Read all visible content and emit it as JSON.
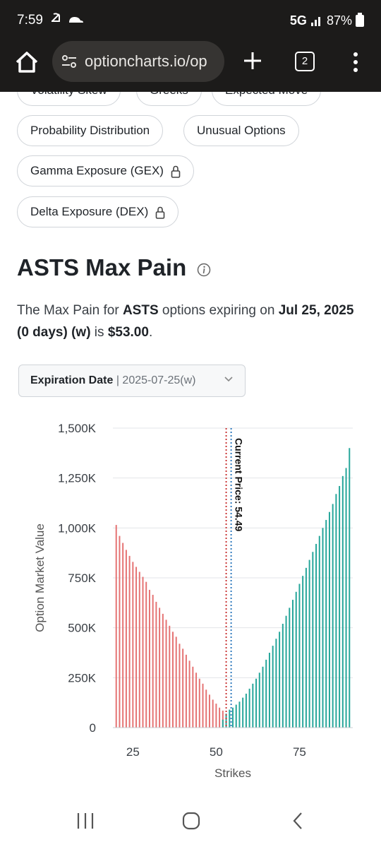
{
  "status_bar": {
    "time": "7:59",
    "network": "5G",
    "battery": "87%"
  },
  "browser": {
    "url": "optioncharts.io/op",
    "tab_count": "2"
  },
  "chips": [
    {
      "label": "Volatility Skew"
    },
    {
      "label": "Greeks"
    },
    {
      "label": "Expected Move"
    },
    {
      "label": "Probability Distribution"
    },
    {
      "label": "Unusual Options"
    },
    {
      "label": "Gamma Exposure (GEX)",
      "locked": true
    },
    {
      "label": "Delta Exposure (DEX)",
      "locked": true
    }
  ],
  "page": {
    "title": "ASTS Max Pain",
    "desc_pre": "The Max Pain for ",
    "desc_ticker": "ASTS",
    "desc_mid": " options expiring on ",
    "desc_date": "Jul 25, 2025 (0 days) (w)",
    "desc_is": " is ",
    "desc_value": "$53.00",
    "desc_end": "."
  },
  "expiration": {
    "label": "Expiration Date",
    "value": "2025-07-25(w)"
  },
  "chart_data": {
    "type": "bar",
    "ylabel": "Option Market Value",
    "xlabel": "Strikes",
    "ylim": [
      0,
      1500000
    ],
    "yticks": [
      "0",
      "250K",
      "500K",
      "750K",
      "1,000K",
      "1,250K",
      "1,500K"
    ],
    "xticks": [
      "25",
      "50",
      "75"
    ],
    "xlim": [
      19,
      91
    ],
    "max_pain_strike": 53,
    "current_price": 54.49,
    "current_price_label": "Current Price: 54.49",
    "colors": {
      "put": "#e57373",
      "call": "#26a69a",
      "max_pain_line": "#c62828",
      "current_line": "#1e6fb8"
    },
    "series": [
      {
        "name": "put",
        "x": [
          20,
          21,
          22,
          23,
          24,
          25,
          26,
          27,
          28,
          29,
          30,
          31,
          32,
          33,
          34,
          35,
          36,
          37,
          38,
          39,
          40,
          41,
          42,
          43,
          44,
          45,
          46,
          47,
          48,
          49,
          50,
          51,
          52
        ],
        "values": [
          1015000,
          960000,
          925000,
          890000,
          860000,
          830000,
          805000,
          780000,
          755000,
          730000,
          690000,
          665000,
          630000,
          600000,
          570000,
          540000,
          510000,
          480000,
          455000,
          420000,
          395000,
          365000,
          335000,
          305000,
          275000,
          245000,
          220000,
          190000,
          165000,
          140000,
          120000,
          100000,
          85000
        ]
      },
      {
        "name": "call",
        "x": [
          52,
          53,
          54,
          55,
          56,
          57,
          58,
          59,
          60,
          61,
          62,
          63,
          64,
          65,
          66,
          67,
          68,
          69,
          70,
          71,
          72,
          73,
          74,
          75,
          76,
          77,
          78,
          79,
          80,
          81,
          82,
          83,
          84,
          85,
          86,
          87,
          88,
          89,
          90
        ],
        "values": [
          40000,
          70000,
          90000,
          100000,
          115000,
          130000,
          150000,
          170000,
          195000,
          220000,
          245000,
          275000,
          305000,
          340000,
          375000,
          410000,
          445000,
          480000,
          520000,
          560000,
          600000,
          640000,
          680000,
          720000,
          760000,
          800000,
          840000,
          880000,
          920000,
          960000,
          1000000,
          1040000,
          1080000,
          1120000,
          1170000,
          1210000,
          1260000,
          1300000,
          1400000
        ]
      }
    ]
  }
}
